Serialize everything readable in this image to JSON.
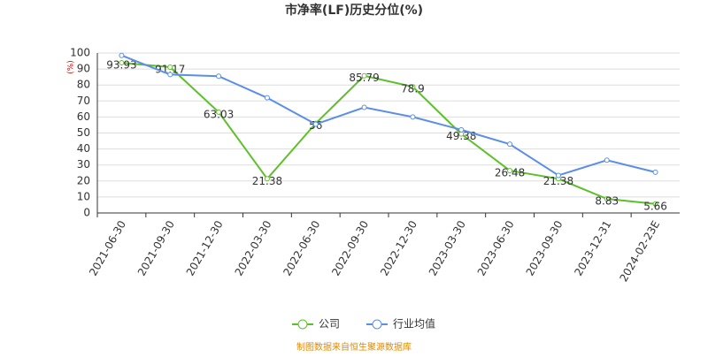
{
  "chart_data": {
    "type": "line",
    "title": "市净率(LF)历史分位(%)",
    "y_label": "(%)",
    "categories": [
      "2021-06-30",
      "2021-09-30",
      "2021-12-30",
      "2022-03-30",
      "2022-06-30",
      "2022-09-30",
      "2022-12-30",
      "2023-03-30",
      "2023-06-30",
      "2023-09-30",
      "2023-12-31",
      "2024-02-23E"
    ],
    "series": [
      {
        "name": "公司",
        "color": "#5cc02a",
        "values": [
          93.93,
          91.17,
          63.03,
          21.38,
          56,
          85.79,
          78.9,
          49.38,
          26.48,
          21.38,
          8.83,
          5.66
        ],
        "show_labels": true
      },
      {
        "name": "行业均值",
        "color": "#5b8ee6",
        "values": [
          98.5,
          86.5,
          85.5,
          72,
          55.5,
          66,
          60,
          52,
          43,
          23.5,
          33,
          25.5
        ],
        "show_labels": false
      }
    ],
    "ylim": [
      0,
      100
    ],
    "yticks": [
      0,
      10,
      20,
      30,
      40,
      50,
      60,
      70,
      80,
      90,
      100
    ],
    "grid": true,
    "legend": "bottom",
    "source": "制图数据来自恒生聚源数据库"
  }
}
